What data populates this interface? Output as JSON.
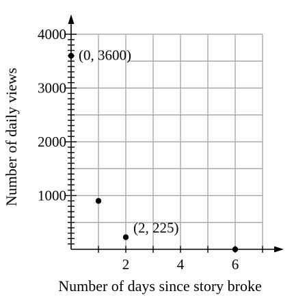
{
  "chart_data": {
    "type": "scatter",
    "title": "",
    "xlabel": "Number of days since story broke",
    "ylabel": "Number of daily views",
    "xlim": [
      0,
      7
    ],
    "ylim": [
      0,
      4000
    ],
    "x_grid_step": 1,
    "y_grid_step": 500,
    "x_ticks": [
      {
        "value": 2,
        "label": "2"
      },
      {
        "value": 4,
        "label": "4"
      },
      {
        "value": 6,
        "label": "6"
      }
    ],
    "y_ticks": [
      {
        "value": 1000,
        "label": "1000"
      },
      {
        "value": 2000,
        "label": "2000"
      },
      {
        "value": 3000,
        "label": "3000"
      },
      {
        "value": 4000,
        "label": "4000"
      }
    ],
    "y_minor_step": 100,
    "grid": true,
    "points": [
      {
        "x": 0,
        "y": 3600,
        "label": "(0, 3600)"
      },
      {
        "x": 1,
        "y": 900,
        "label": ""
      },
      {
        "x": 2,
        "y": 225,
        "label": "(2, 225)"
      },
      {
        "x": 6,
        "y": 0,
        "label": ""
      }
    ],
    "colors": {
      "grid": "#a9a9a9",
      "axis": "#000000",
      "point": "#000000"
    }
  }
}
